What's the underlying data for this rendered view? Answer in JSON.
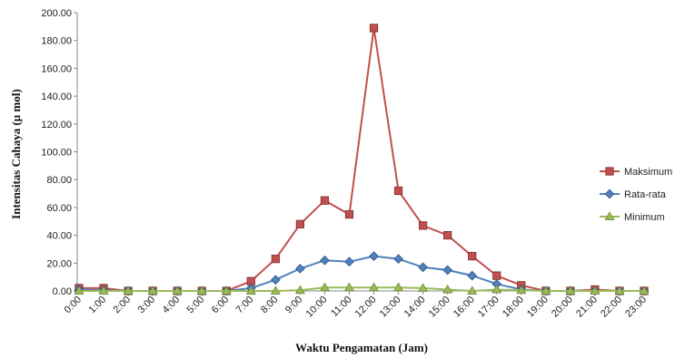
{
  "chart_data": {
    "type": "line",
    "xlabel": "Waktu Pengamatan  (Jam)",
    "ylabel": "Intensitas Cahaya  (µ mol)",
    "ylim": [
      0,
      200
    ],
    "yticks": [
      "0.00",
      "20.00",
      "40.00",
      "60.00",
      "80.00",
      "100.00",
      "120.00",
      "140.00",
      "160.00",
      "180.00",
      "200.00"
    ],
    "categories": [
      "0:00",
      "1:00",
      "2:00",
      "3:00",
      "4:00",
      "5:00",
      "6:00",
      "7:00",
      "8:00",
      "9:00",
      "10:00",
      "11:00",
      "12:00",
      "13:00",
      "14:00",
      "15:00",
      "16:00",
      "17:00",
      "18:00",
      "19:00",
      "20:00",
      "21:00",
      "22:00",
      "23:00"
    ],
    "legend_position": "right",
    "grid": false,
    "series": [
      {
        "name": "Maksimum",
        "color": "#c0504d",
        "marker": "square",
        "values": [
          2,
          2,
          0,
          0,
          0,
          0,
          0,
          7,
          23,
          48,
          65,
          55,
          189,
          72,
          47,
          40,
          25,
          11,
          4,
          0,
          0,
          1,
          0,
          0
        ]
      },
      {
        "name": "Rata-rata",
        "color": "#4f81bd",
        "marker": "diamond",
        "values": [
          1,
          0.5,
          0,
          0,
          0,
          0,
          0,
          2,
          8,
          16,
          22,
          21,
          25,
          23,
          17,
          15,
          11,
          5,
          1,
          0,
          0,
          0,
          0,
          0
        ]
      },
      {
        "name": "Minimum",
        "color": "#9bbb59",
        "marker": "triangle",
        "values": [
          0,
          0,
          0,
          0,
          0,
          0,
          0,
          0,
          0,
          0.5,
          2.5,
          2.5,
          2.5,
          2.5,
          2,
          1,
          0,
          1,
          0.5,
          0,
          0,
          0,
          0,
          0
        ]
      }
    ]
  }
}
